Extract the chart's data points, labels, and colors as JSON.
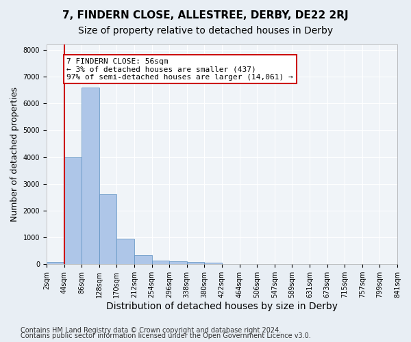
{
  "title": "7, FINDERN CLOSE, ALLESTREE, DERBY, DE22 2RJ",
  "subtitle": "Size of property relative to detached houses in Derby",
  "xlabel": "Distribution of detached houses by size in Derby",
  "ylabel": "Number of detached properties",
  "bin_labels": [
    "2sqm",
    "44sqm",
    "86sqm",
    "128sqm",
    "170sqm",
    "212sqm",
    "254sqm",
    "296sqm",
    "338sqm",
    "380sqm",
    "422sqm",
    "464sqm",
    "506sqm",
    "547sqm",
    "589sqm",
    "631sqm",
    "673sqm",
    "715sqm",
    "757sqm",
    "799sqm",
    "841sqm"
  ],
  "bar_values": [
    80,
    4000,
    6600,
    2620,
    960,
    330,
    140,
    110,
    80,
    60,
    0,
    0,
    0,
    0,
    0,
    0,
    0,
    0,
    0,
    0
  ],
  "bar_color": "#aec6e8",
  "bar_edge_color": "#5a8fc0",
  "property_line_x": 1,
  "annotation_line1": "7 FINDERN CLOSE: 56sqm",
  "annotation_line2": "← 3% of detached houses are smaller (437)",
  "annotation_line3": "97% of semi-detached houses are larger (14,061) →",
  "annotation_box_color": "#ffffff",
  "annotation_box_edge_color": "#cc0000",
  "vline_color": "#cc0000",
  "ylim": [
    0,
    8200
  ],
  "yticks": [
    0,
    1000,
    2000,
    3000,
    4000,
    5000,
    6000,
    7000,
    8000
  ],
  "footer1": "Contains HM Land Registry data © Crown copyright and database right 2024.",
  "footer2": "Contains public sector information licensed under the Open Government Licence v3.0.",
  "bg_color": "#e8eef4",
  "plot_bg_color": "#f0f4f8",
  "grid_color": "#ffffff",
  "title_fontsize": 11,
  "subtitle_fontsize": 10,
  "axis_label_fontsize": 9,
  "tick_fontsize": 7,
  "annotation_fontsize": 8,
  "footer_fontsize": 7
}
